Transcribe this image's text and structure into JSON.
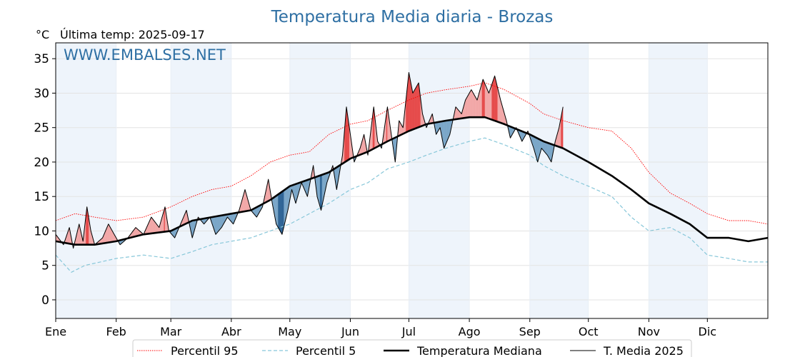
{
  "chart_data": {
    "type": "line",
    "title": "Temperatura Media diaria - Brozas",
    "unit": "°C",
    "subtitle": "Última temp: 2025-09-17",
    "watermark": "WWW.EMBALSES.NET",
    "ylim": [
      -2.7,
      37.3
    ],
    "yticks": [
      0,
      5,
      10,
      15,
      20,
      25,
      30,
      35
    ],
    "xlim": [
      0,
      365
    ],
    "grid": true,
    "legend_position": "bottom-center",
    "months": [
      {
        "label": "Ene",
        "day": 0
      },
      {
        "label": "Feb",
        "day": 31
      },
      {
        "label": "Mar",
        "day": 59
      },
      {
        "label": "Abr",
        "day": 90
      },
      {
        "label": "May",
        "day": 120
      },
      {
        "label": "Jun",
        "day": 151
      },
      {
        "label": "Jul",
        "day": 181
      },
      {
        "label": "Ago",
        "day": 212
      },
      {
        "label": "Sep",
        "day": 243
      },
      {
        "label": "Oct",
        "day": 273
      },
      {
        "label": "Nov",
        "day": 304
      },
      {
        "label": "Dic",
        "day": 334
      }
    ],
    "colors": {
      "title": "#2e6fa3",
      "p95": "#ff0000",
      "p5": "#87c7d9",
      "median": "#000000",
      "current": "#000000",
      "fill_above": "#f2a7a7",
      "fill_above_strong": "#e64a4a",
      "fill_below": "#7aa6c8",
      "fill_below_strong": "#2f6496",
      "band": "#eef4fb"
    },
    "series": [
      {
        "name": "Percentil 95",
        "style": "dotted",
        "points": [
          [
            0,
            11.5
          ],
          [
            10,
            12.5
          ],
          [
            20,
            12
          ],
          [
            31,
            11.5
          ],
          [
            45,
            12
          ],
          [
            59,
            13.5
          ],
          [
            70,
            15
          ],
          [
            80,
            16
          ],
          [
            90,
            16.5
          ],
          [
            100,
            18
          ],
          [
            110,
            20
          ],
          [
            120,
            21
          ],
          [
            130,
            21.5
          ],
          [
            140,
            24
          ],
          [
            151,
            25.5
          ],
          [
            160,
            26
          ],
          [
            170,
            27.5
          ],
          [
            181,
            29
          ],
          [
            190,
            30
          ],
          [
            200,
            30.5
          ],
          [
            212,
            31
          ],
          [
            220,
            31.5
          ],
          [
            230,
            30.5
          ],
          [
            243,
            28.5
          ],
          [
            250,
            27
          ],
          [
            260,
            26
          ],
          [
            273,
            25
          ],
          [
            285,
            24.5
          ],
          [
            295,
            22
          ],
          [
            304,
            18.5
          ],
          [
            315,
            15.5
          ],
          [
            325,
            14
          ],
          [
            334,
            12.5
          ],
          [
            345,
            11.5
          ],
          [
            355,
            11.5
          ],
          [
            365,
            11
          ]
        ]
      },
      {
        "name": "Percentil 5",
        "style": "dashed",
        "points": [
          [
            0,
            6.5
          ],
          [
            8,
            4
          ],
          [
            15,
            5
          ],
          [
            31,
            6
          ],
          [
            45,
            6.5
          ],
          [
            59,
            6
          ],
          [
            70,
            7
          ],
          [
            80,
            8
          ],
          [
            90,
            8.5
          ],
          [
            100,
            9
          ],
          [
            110,
            10
          ],
          [
            120,
            11
          ],
          [
            130,
            12.5
          ],
          [
            140,
            14
          ],
          [
            151,
            16
          ],
          [
            160,
            17
          ],
          [
            170,
            19
          ],
          [
            181,
            20
          ],
          [
            190,
            21
          ],
          [
            200,
            22
          ],
          [
            212,
            23
          ],
          [
            220,
            23.5
          ],
          [
            230,
            22.5
          ],
          [
            243,
            21
          ],
          [
            250,
            19.5
          ],
          [
            260,
            18
          ],
          [
            273,
            16.5
          ],
          [
            285,
            15
          ],
          [
            295,
            12
          ],
          [
            304,
            10
          ],
          [
            315,
            10.5
          ],
          [
            325,
            9
          ],
          [
            334,
            6.5
          ],
          [
            345,
            6
          ],
          [
            355,
            5.5
          ],
          [
            365,
            5.5
          ]
        ]
      },
      {
        "name": "Temperatura Mediana",
        "style": "solid-thick",
        "points": [
          [
            0,
            8.5
          ],
          [
            10,
            8
          ],
          [
            20,
            8
          ],
          [
            31,
            8.5
          ],
          [
            45,
            9.5
          ],
          [
            59,
            10
          ],
          [
            70,
            11.5
          ],
          [
            80,
            12
          ],
          [
            90,
            12.5
          ],
          [
            100,
            13
          ],
          [
            110,
            14.5
          ],
          [
            120,
            16.5
          ],
          [
            130,
            17.5
          ],
          [
            140,
            18.5
          ],
          [
            151,
            20.5
          ],
          [
            160,
            21.5
          ],
          [
            170,
            23
          ],
          [
            181,
            24.5
          ],
          [
            190,
            25.5
          ],
          [
            200,
            26
          ],
          [
            212,
            26.5
          ],
          [
            220,
            26.5
          ],
          [
            230,
            25.5
          ],
          [
            243,
            24
          ],
          [
            250,
            23
          ],
          [
            260,
            22
          ],
          [
            273,
            20
          ],
          [
            285,
            18
          ],
          [
            295,
            16
          ],
          [
            304,
            14
          ],
          [
            315,
            12.5
          ],
          [
            325,
            11
          ],
          [
            334,
            9
          ],
          [
            345,
            9
          ],
          [
            355,
            8.5
          ],
          [
            365,
            9
          ]
        ]
      },
      {
        "name": "T. Media 2025",
        "style": "solid-thin",
        "points": [
          [
            0,
            9.5
          ],
          [
            4,
            8
          ],
          [
            7,
            10.5
          ],
          [
            9,
            7.5
          ],
          [
            12,
            11
          ],
          [
            14,
            8.5
          ],
          [
            16,
            13.5
          ],
          [
            18,
            10
          ],
          [
            20,
            8
          ],
          [
            24,
            9
          ],
          [
            27,
            11
          ],
          [
            30,
            9.5
          ],
          [
            33,
            8
          ],
          [
            37,
            9
          ],
          [
            41,
            10.5
          ],
          [
            45,
            9.5
          ],
          [
            49,
            12
          ],
          [
            53,
            10.5
          ],
          [
            56,
            13.5
          ],
          [
            58,
            10
          ],
          [
            61,
            9
          ],
          [
            64,
            11
          ],
          [
            67,
            13
          ],
          [
            70,
            9
          ],
          [
            73,
            12
          ],
          [
            76,
            11
          ],
          [
            79,
            12
          ],
          [
            82,
            9.5
          ],
          [
            85,
            10.5
          ],
          [
            88,
            12
          ],
          [
            91,
            11
          ],
          [
            94,
            13
          ],
          [
            97,
            16
          ],
          [
            100,
            13
          ],
          [
            103,
            12
          ],
          [
            106,
            13.5
          ],
          [
            109,
            17.5
          ],
          [
            111,
            14
          ],
          [
            113,
            11
          ],
          [
            116,
            9.5
          ],
          [
            119,
            13
          ],
          [
            121,
            16
          ],
          [
            123,
            14
          ],
          [
            126,
            17
          ],
          [
            129,
            15
          ],
          [
            132,
            19.5
          ],
          [
            134,
            15
          ],
          [
            136,
            13
          ],
          [
            139,
            17
          ],
          [
            142,
            19.5
          ],
          [
            144,
            16
          ],
          [
            147,
            21
          ],
          [
            149,
            28
          ],
          [
            151,
            24
          ],
          [
            153,
            20
          ],
          [
            156,
            22
          ],
          [
            158,
            24
          ],
          [
            160,
            21
          ],
          [
            163,
            28
          ],
          [
            165,
            23
          ],
          [
            167,
            22
          ],
          [
            170,
            28
          ],
          [
            172,
            24
          ],
          [
            174,
            20
          ],
          [
            176,
            26
          ],
          [
            178,
            25
          ],
          [
            181,
            33
          ],
          [
            183,
            30
          ],
          [
            186,
            31.5
          ],
          [
            188,
            27
          ],
          [
            190,
            25
          ],
          [
            193,
            27
          ],
          [
            195,
            24
          ],
          [
            197,
            25
          ],
          [
            199,
            22
          ],
          [
            202,
            24
          ],
          [
            205,
            28
          ],
          [
            208,
            27
          ],
          [
            210,
            29
          ],
          [
            213,
            30.5
          ],
          [
            216,
            29
          ],
          [
            219,
            32
          ],
          [
            222,
            30
          ],
          [
            225,
            32.5
          ],
          [
            228,
            29
          ],
          [
            231,
            26
          ],
          [
            233,
            23.5
          ],
          [
            236,
            25
          ],
          [
            239,
            23
          ],
          [
            242,
            24.5
          ],
          [
            245,
            22
          ],
          [
            247,
            20
          ],
          [
            249,
            22
          ],
          [
            252,
            21
          ],
          [
            254,
            20
          ],
          [
            256,
            23
          ],
          [
            258,
            25
          ],
          [
            260,
            28
          ]
        ]
      }
    ],
    "legend": [
      {
        "label": "Percentil 95",
        "ref": "p95"
      },
      {
        "label": "Percentil 5",
        "ref": "p5"
      },
      {
        "label": "Temperatura Mediana",
        "ref": "median"
      },
      {
        "label": "T. Media 2025",
        "ref": "current"
      }
    ]
  }
}
